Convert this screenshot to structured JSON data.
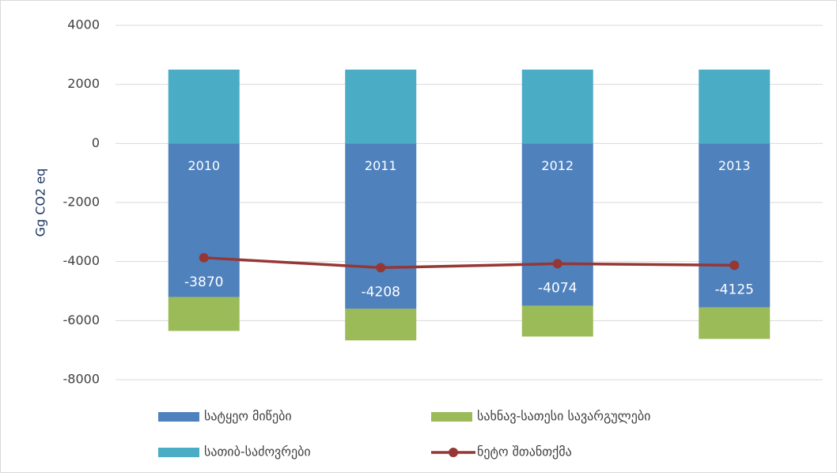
{
  "chart_data": {
    "type": "bar",
    "ylabel": "Gg CO2 eq",
    "categories": [
      "2010",
      "2011",
      "2012",
      "2013"
    ],
    "series": [
      {
        "name": "სატყეო მიწები",
        "color": "#4f81bd",
        "values": [
          -5200,
          -5600,
          -5500,
          -5550
        ]
      },
      {
        "name": "სახნავ-სათესი სავარგულები",
        "color": "#9bbb59",
        "values": [
          -1150,
          -1070,
          -1040,
          -1070
        ]
      },
      {
        "name": "სათიბ-საძოვრები",
        "color": "#4bacc6",
        "values": [
          2500,
          2500,
          2500,
          2500
        ]
      },
      {
        "name": "ნეტო შთანთქმა",
        "color": "#953735",
        "type": "line",
        "values": [
          -3870,
          -4208,
          -4074,
          -4125
        ]
      }
    ],
    "ylim": [
      -8000,
      4000
    ],
    "yticks": [
      -8000,
      -6000,
      -4000,
      -2000,
      0,
      2000,
      4000
    ],
    "grid": true
  }
}
